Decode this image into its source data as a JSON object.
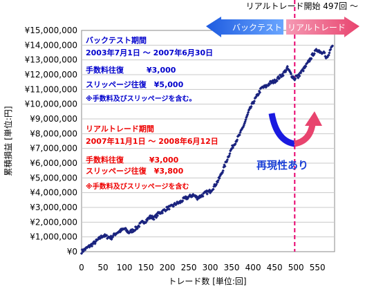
{
  "chart_data": {
    "type": "scatter",
    "xlabel": "トレード数 [単位:回]",
    "ylabel": "累積損益 [単位:円]",
    "xlim": [
      0,
      590
    ],
    "ylim": [
      0,
      15000000
    ],
    "x_ticks": [
      "0",
      "50",
      "100",
      "150",
      "200",
      "250",
      "300",
      "350",
      "400",
      "450",
      "500",
      "550"
    ],
    "y_ticks": [
      "¥0",
      "¥1,000,000",
      "¥2,000,000",
      "¥3,000,000",
      "¥4,000,000",
      "¥5,000,000",
      "¥6,000,000",
      "¥7,000,000",
      "¥8,000,000",
      "¥9,000,000",
      "¥10,000,000",
      "¥11,000,000",
      "¥12,000,000",
      "¥13,000,000",
      "¥14,000,000",
      "¥15,000,000"
    ],
    "grid": true,
    "marker_color": "#1a237e",
    "cumulative_pl_points": [
      [
        0,
        0
      ],
      [
        10,
        200000
      ],
      [
        20,
        400000
      ],
      [
        30,
        600000
      ],
      [
        40,
        850000
      ],
      [
        50,
        1100000
      ],
      [
        60,
        1000000
      ],
      [
        70,
        950000
      ],
      [
        80,
        1250000
      ],
      [
        90,
        1400000
      ],
      [
        100,
        1550000
      ],
      [
        110,
        1300000
      ],
      [
        120,
        1450000
      ],
      [
        130,
        1650000
      ],
      [
        140,
        1950000
      ],
      [
        150,
        2100000
      ],
      [
        160,
        2350000
      ],
      [
        170,
        2300000
      ],
      [
        180,
        2600000
      ],
      [
        190,
        2750000
      ],
      [
        200,
        2950000
      ],
      [
        210,
        3050000
      ],
      [
        220,
        3250000
      ],
      [
        230,
        3350000
      ],
      [
        240,
        3600000
      ],
      [
        250,
        3700000
      ],
      [
        260,
        3850000
      ],
      [
        270,
        3650000
      ],
      [
        280,
        3800000
      ],
      [
        290,
        4000000
      ],
      [
        300,
        4100000
      ],
      [
        310,
        4450000
      ],
      [
        320,
        4900000
      ],
      [
        330,
        5550000
      ],
      [
        340,
        6300000
      ],
      [
        350,
        7000000
      ],
      [
        360,
        7500000
      ],
      [
        370,
        8000000
      ],
      [
        380,
        8700000
      ],
      [
        390,
        9500000
      ],
      [
        400,
        10100000
      ],
      [
        410,
        10600000
      ],
      [
        420,
        11100000
      ],
      [
        430,
        11200000
      ],
      [
        440,
        11450000
      ],
      [
        450,
        11550000
      ],
      [
        460,
        11800000
      ],
      [
        470,
        12050000
      ],
      [
        480,
        12450000
      ],
      [
        490,
        11950000
      ],
      [
        497,
        11700000
      ],
      [
        500,
        11900000
      ],
      [
        505,
        11850000
      ],
      [
        510,
        12100000
      ],
      [
        520,
        12450000
      ],
      [
        530,
        12900000
      ],
      [
        540,
        13400000
      ],
      [
        550,
        13700000
      ],
      [
        560,
        13500000
      ],
      [
        565,
        13650000
      ],
      [
        570,
        13050000
      ],
      [
        575,
        13250000
      ],
      [
        585,
        13950000
      ]
    ],
    "live_start_trade": 497,
    "live_start_label": "リアルトレード開始 497回 ～",
    "legend": {
      "backtest_label": "バックテスト",
      "live_label": "リアルトレード",
      "backtest_color": "#2b6fe8",
      "live_color": "#e8446e"
    },
    "annotations": {
      "backtest": {
        "title": "バックテスト期間",
        "period": "2003年7月1日 ～ 2007年6月30日",
        "commission": "手数料往復　　　¥3,000",
        "slippage": "スリッページ往復　¥5,000",
        "note": "※手数料及びスリッページを含む。"
      },
      "live": {
        "title": "リアルトレード期間",
        "period": "2007年11月1日 ～ 2008年6月12日",
        "commission": "手数料往復　　　 ¥3,000",
        "slippage": "スリッページ往復　¥3,800",
        "note": "※手数料及びスリッページを含む"
      },
      "reproducibility": "再現性あり"
    }
  }
}
